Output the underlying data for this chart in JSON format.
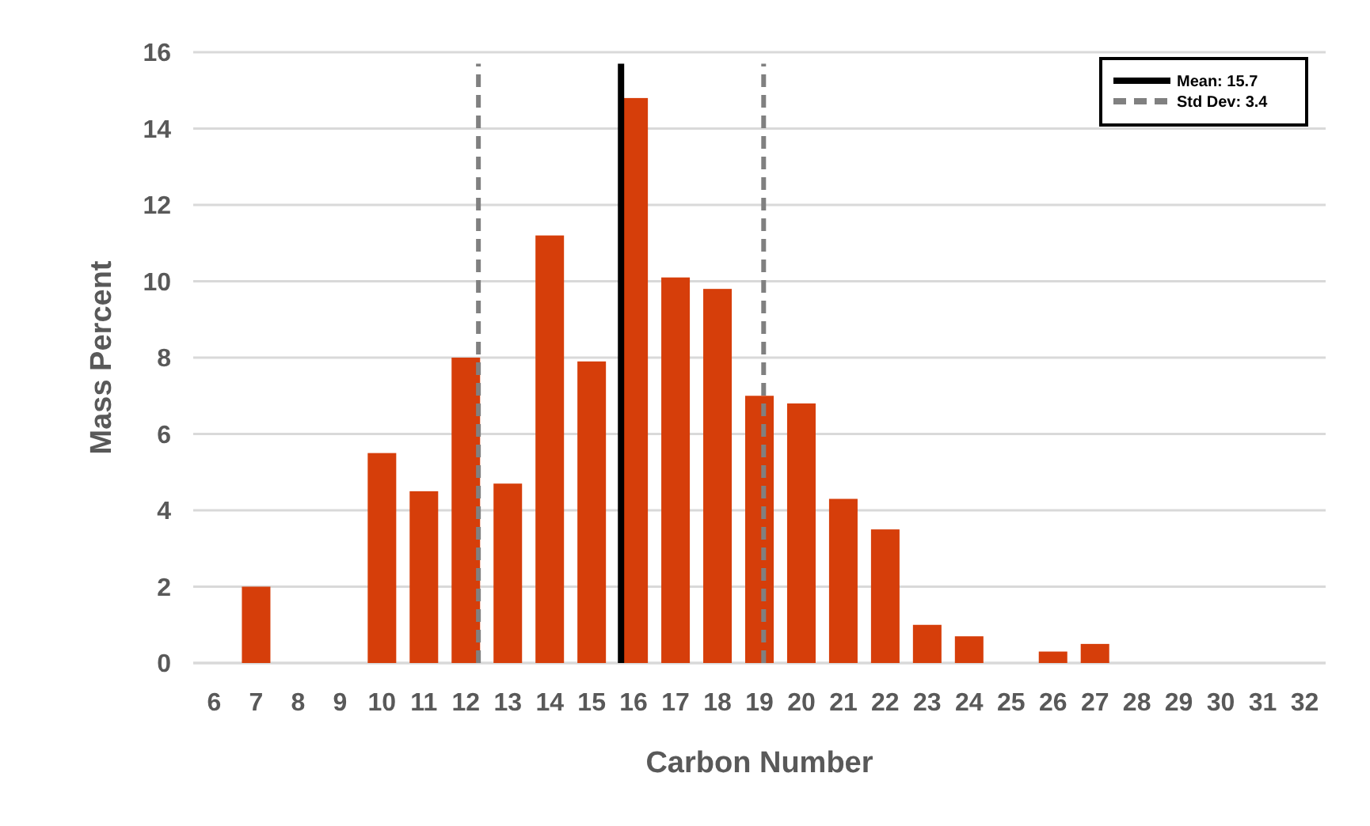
{
  "chart_data": {
    "type": "bar",
    "xlabel": "Carbon Number",
    "ylabel": "Mass Percent",
    "x": [
      6,
      7,
      8,
      9,
      10,
      11,
      12,
      13,
      14,
      15,
      16,
      17,
      18,
      19,
      20,
      21,
      22,
      23,
      24,
      25,
      26,
      27,
      28,
      29,
      30,
      31,
      32
    ],
    "values": [
      0,
      2,
      0,
      0,
      5.5,
      4.5,
      8,
      4.7,
      11.2,
      7.9,
      14.8,
      10.1,
      9.8,
      7,
      6.8,
      4.3,
      3.5,
      1,
      0.7,
      0,
      0.3,
      0.5,
      0,
      0,
      0,
      0,
      0
    ],
    "color": "#d63e0a",
    "xlim": [
      5.5,
      32.5
    ],
    "xticks": [
      6,
      7,
      8,
      9,
      10,
      11,
      12,
      13,
      14,
      15,
      16,
      17,
      18,
      19,
      20,
      21,
      22,
      23,
      24,
      25,
      26,
      27,
      28,
      29,
      30,
      31,
      32
    ],
    "ylim": [
      0,
      16
    ],
    "yticks": [
      0,
      2,
      4,
      6,
      8,
      10,
      12,
      14,
      16
    ],
    "grid": "y",
    "annotations": [
      "Std Dev: 3.4"
    ],
    "legend": "top right",
    "ref_lines": [
      {
        "axis": "x",
        "value": 15.7,
        "label": "Mean: 15.7",
        "color": "#000000",
        "line_style": "solid"
      },
      {
        "axis": "x",
        "value": 12.3,
        "label": null,
        "color": "#808080",
        "line_style": "dashed"
      },
      {
        "axis": "x",
        "value": 19.1,
        "label": null,
        "color": "#808080",
        "line_style": "dashed"
      }
    ]
  }
}
